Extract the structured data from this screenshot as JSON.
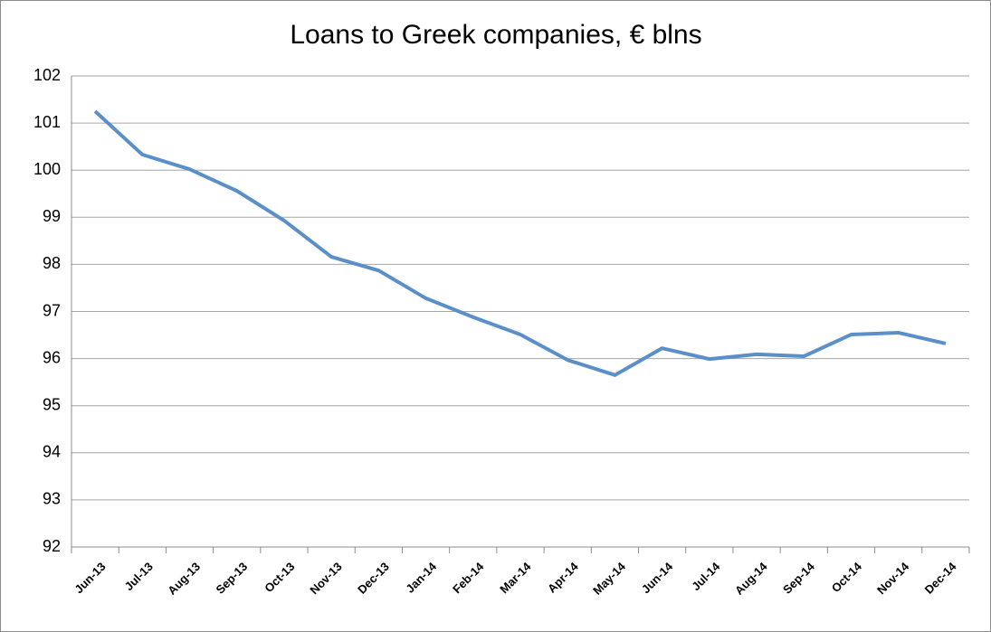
{
  "chart_data": {
    "type": "line",
    "title": "Loans to Greek companies, € blns",
    "categories": [
      "Jun-13",
      "Jul-13",
      "Aug-13",
      "Sep-13",
      "Oct-13",
      "Nov-13",
      "Dec-13",
      "Jan-14",
      "Feb-14",
      "Mar-14",
      "Apr-14",
      "May-14",
      "Jun-14",
      "Jul-14",
      "Aug-14",
      "Sep-14",
      "Oct-14",
      "Nov-14",
      "Dec-14"
    ],
    "series": [
      {
        "name": "Loans",
        "color": "#5b8fc8",
        "values": [
          101.25,
          100.33,
          100.02,
          99.56,
          98.93,
          98.16,
          97.87,
          97.28,
          96.88,
          96.51,
          95.97,
          95.65,
          96.22,
          95.99,
          96.09,
          96.05,
          96.51,
          96.55,
          96.32
        ]
      }
    ],
    "ylim": [
      92,
      102
    ],
    "yticks": [
      92,
      93,
      94,
      95,
      96,
      97,
      98,
      99,
      100,
      101,
      102
    ],
    "grid": true
  }
}
